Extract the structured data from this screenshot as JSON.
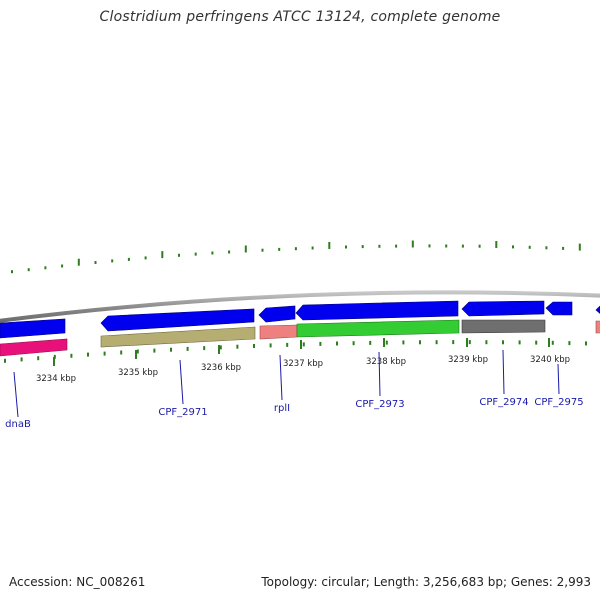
{
  "title": "Clostridium perfringens ATCC 13124, complete genome",
  "footer": {
    "accession": "Accession: NC_008261",
    "summary": "Topology: circular; Length: 3,256,683 bp; Genes: 2,993"
  },
  "colors": {
    "backbone": "#8c8c8c",
    "gc_skew_ticks": "#2e7d1e",
    "gene_forward": "#0000ee",
    "gene_reverse_tan": "#b5ad72",
    "gene_green": "#33cc33",
    "gene_gray": "#6f6f6f",
    "gene_magenta": "#e8107a",
    "gene_salmon": "#ef8080",
    "label": "#1a1aaa"
  },
  "scale": {
    "unit": "kbp",
    "ticks": [
      "3234 kbp",
      "3235 kbp",
      "3236 kbp",
      "3237 kbp",
      "3238 kbp",
      "3239 kbp",
      "3240 kbp"
    ]
  },
  "gene_labels": [
    "dnaB",
    "CPF_2971",
    "rplI",
    "CPF_2973",
    "CPF_2974",
    "CPF_2975"
  ]
}
